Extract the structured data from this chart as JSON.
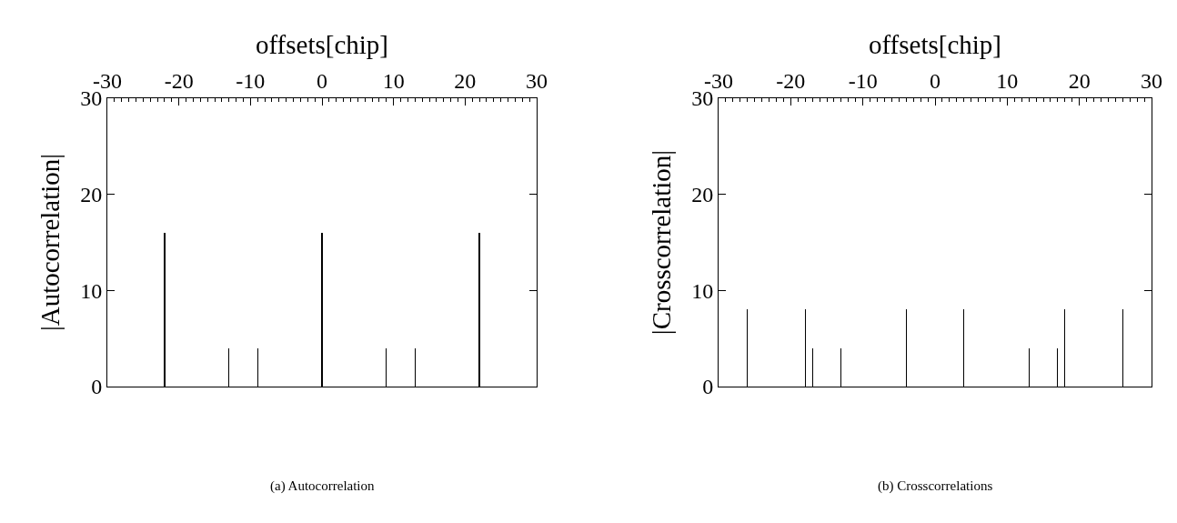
{
  "chart_data": [
    {
      "type": "bar",
      "xlabel": "offsets[chip]",
      "ylabel": "|Autocorrelation|",
      "annotations": [
        "(a) Autocorrelation"
      ],
      "x": [
        -22,
        -13,
        -9,
        0,
        9,
        13,
        22
      ],
      "series": [
        {
          "color": "#000000",
          "values": [
            16,
            4,
            4,
            16,
            4,
            4,
            16
          ]
        }
      ],
      "xlim": [
        -30,
        30
      ],
      "xticks": [
        -30,
        -20,
        -10,
        0,
        10,
        20,
        30
      ],
      "ylim": [
        0,
        30
      ],
      "yticks": [
        0,
        10,
        20,
        30
      ],
      "grid": false
    },
    {
      "type": "bar",
      "xlabel": "offsets[chip]",
      "ylabel": "|Crosscorrelation|",
      "annotations": [
        "(b) Crosscorrelations"
      ],
      "x": [
        -26,
        -18,
        -17,
        -13,
        -4,
        4,
        13,
        17,
        18,
        26
      ],
      "series": [
        {
          "color": "#000000",
          "values": [
            8,
            8,
            4,
            4,
            8,
            8,
            4,
            4,
            8,
            8
          ]
        }
      ],
      "xlim": [
        -30,
        30
      ],
      "xticks": [
        -30,
        -20,
        -10,
        0,
        10,
        20,
        30
      ],
      "ylim": [
        0,
        30
      ],
      "yticks": [
        0,
        10,
        20,
        30
      ],
      "grid": false
    }
  ]
}
